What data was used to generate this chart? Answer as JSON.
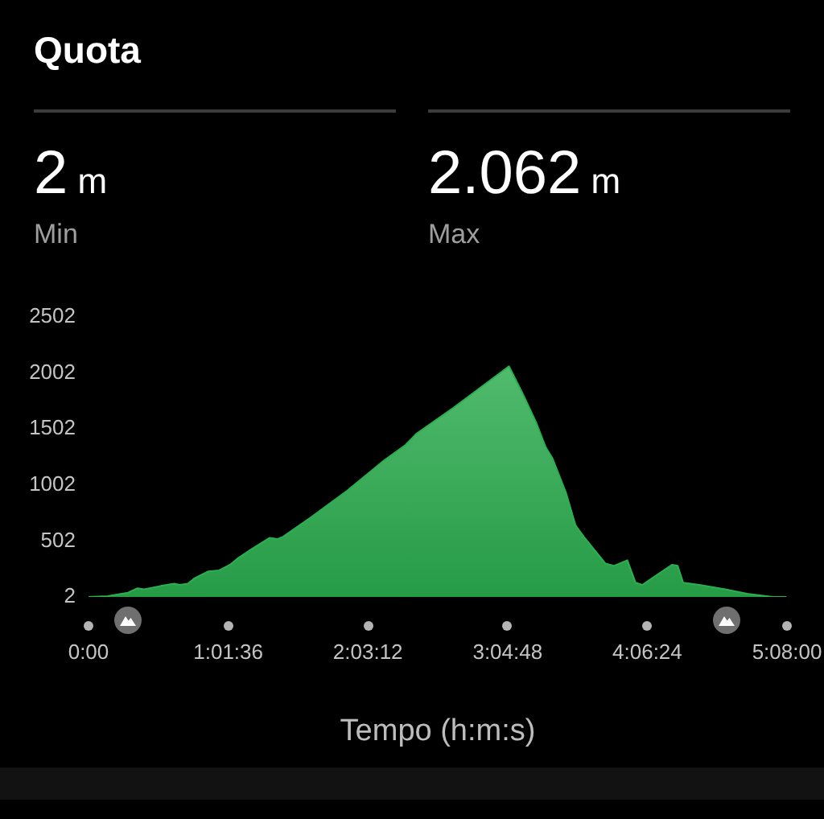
{
  "chart_data": {
    "type": "area",
    "title": "Quota",
    "xlabel": "Tempo (h:m:s)",
    "annotations": [
      "2 m",
      "Min",
      "2.062 m",
      "Max"
    ],
    "x": [
      0,
      0.14,
      0.29,
      0.36,
      0.41,
      0.53,
      0.63,
      0.67,
      0.73,
      0.78,
      0.88,
      0.96,
      1.04,
      1.1,
      1.2,
      1.33,
      1.39,
      1.43,
      1.63,
      1.9,
      2.17,
      2.33,
      2.41,
      2.68,
      3.09,
      3.19,
      3.29,
      3.36,
      3.41,
      3.51,
      3.58,
      3.64,
      3.72,
      3.8,
      3.86,
      3.96,
      4.02,
      4.07,
      4.13,
      4.29,
      4.33,
      4.37,
      4.49,
      4.68,
      4.84,
      5.03,
      5.13
    ],
    "values": [
      2,
      10,
      40,
      80,
      70,
      100,
      120,
      110,
      120,
      170,
      230,
      240,
      290,
      350,
      430,
      530,
      520,
      540,
      710,
      950,
      1220,
      1360,
      1460,
      1690,
      2062,
      1820,
      1560,
      1340,
      1240,
      930,
      640,
      540,
      420,
      300,
      280,
      330,
      130,
      110,
      160,
      290,
      280,
      130,
      110,
      70,
      30,
      2,
      2
    ],
    "color": "#2bb04f",
    "xlim": [
      0,
      5.1333
    ],
    "xticks": [
      {
        "value": 0,
        "label": "0:00"
      },
      {
        "value": 1.0267,
        "label": "1:01:36"
      },
      {
        "value": 2.0533,
        "label": "2:03:12"
      },
      {
        "value": 3.08,
        "label": "3:04:48"
      },
      {
        "value": 4.1067,
        "label": "4:06:24"
      },
      {
        "value": 5.1333,
        "label": "5:08:00"
      }
    ],
    "ylim": [
      2,
      2502
    ],
    "yticks": [
      2,
      502,
      1002,
      1502,
      2002,
      2502
    ],
    "marker": "none",
    "legend": false
  }
}
